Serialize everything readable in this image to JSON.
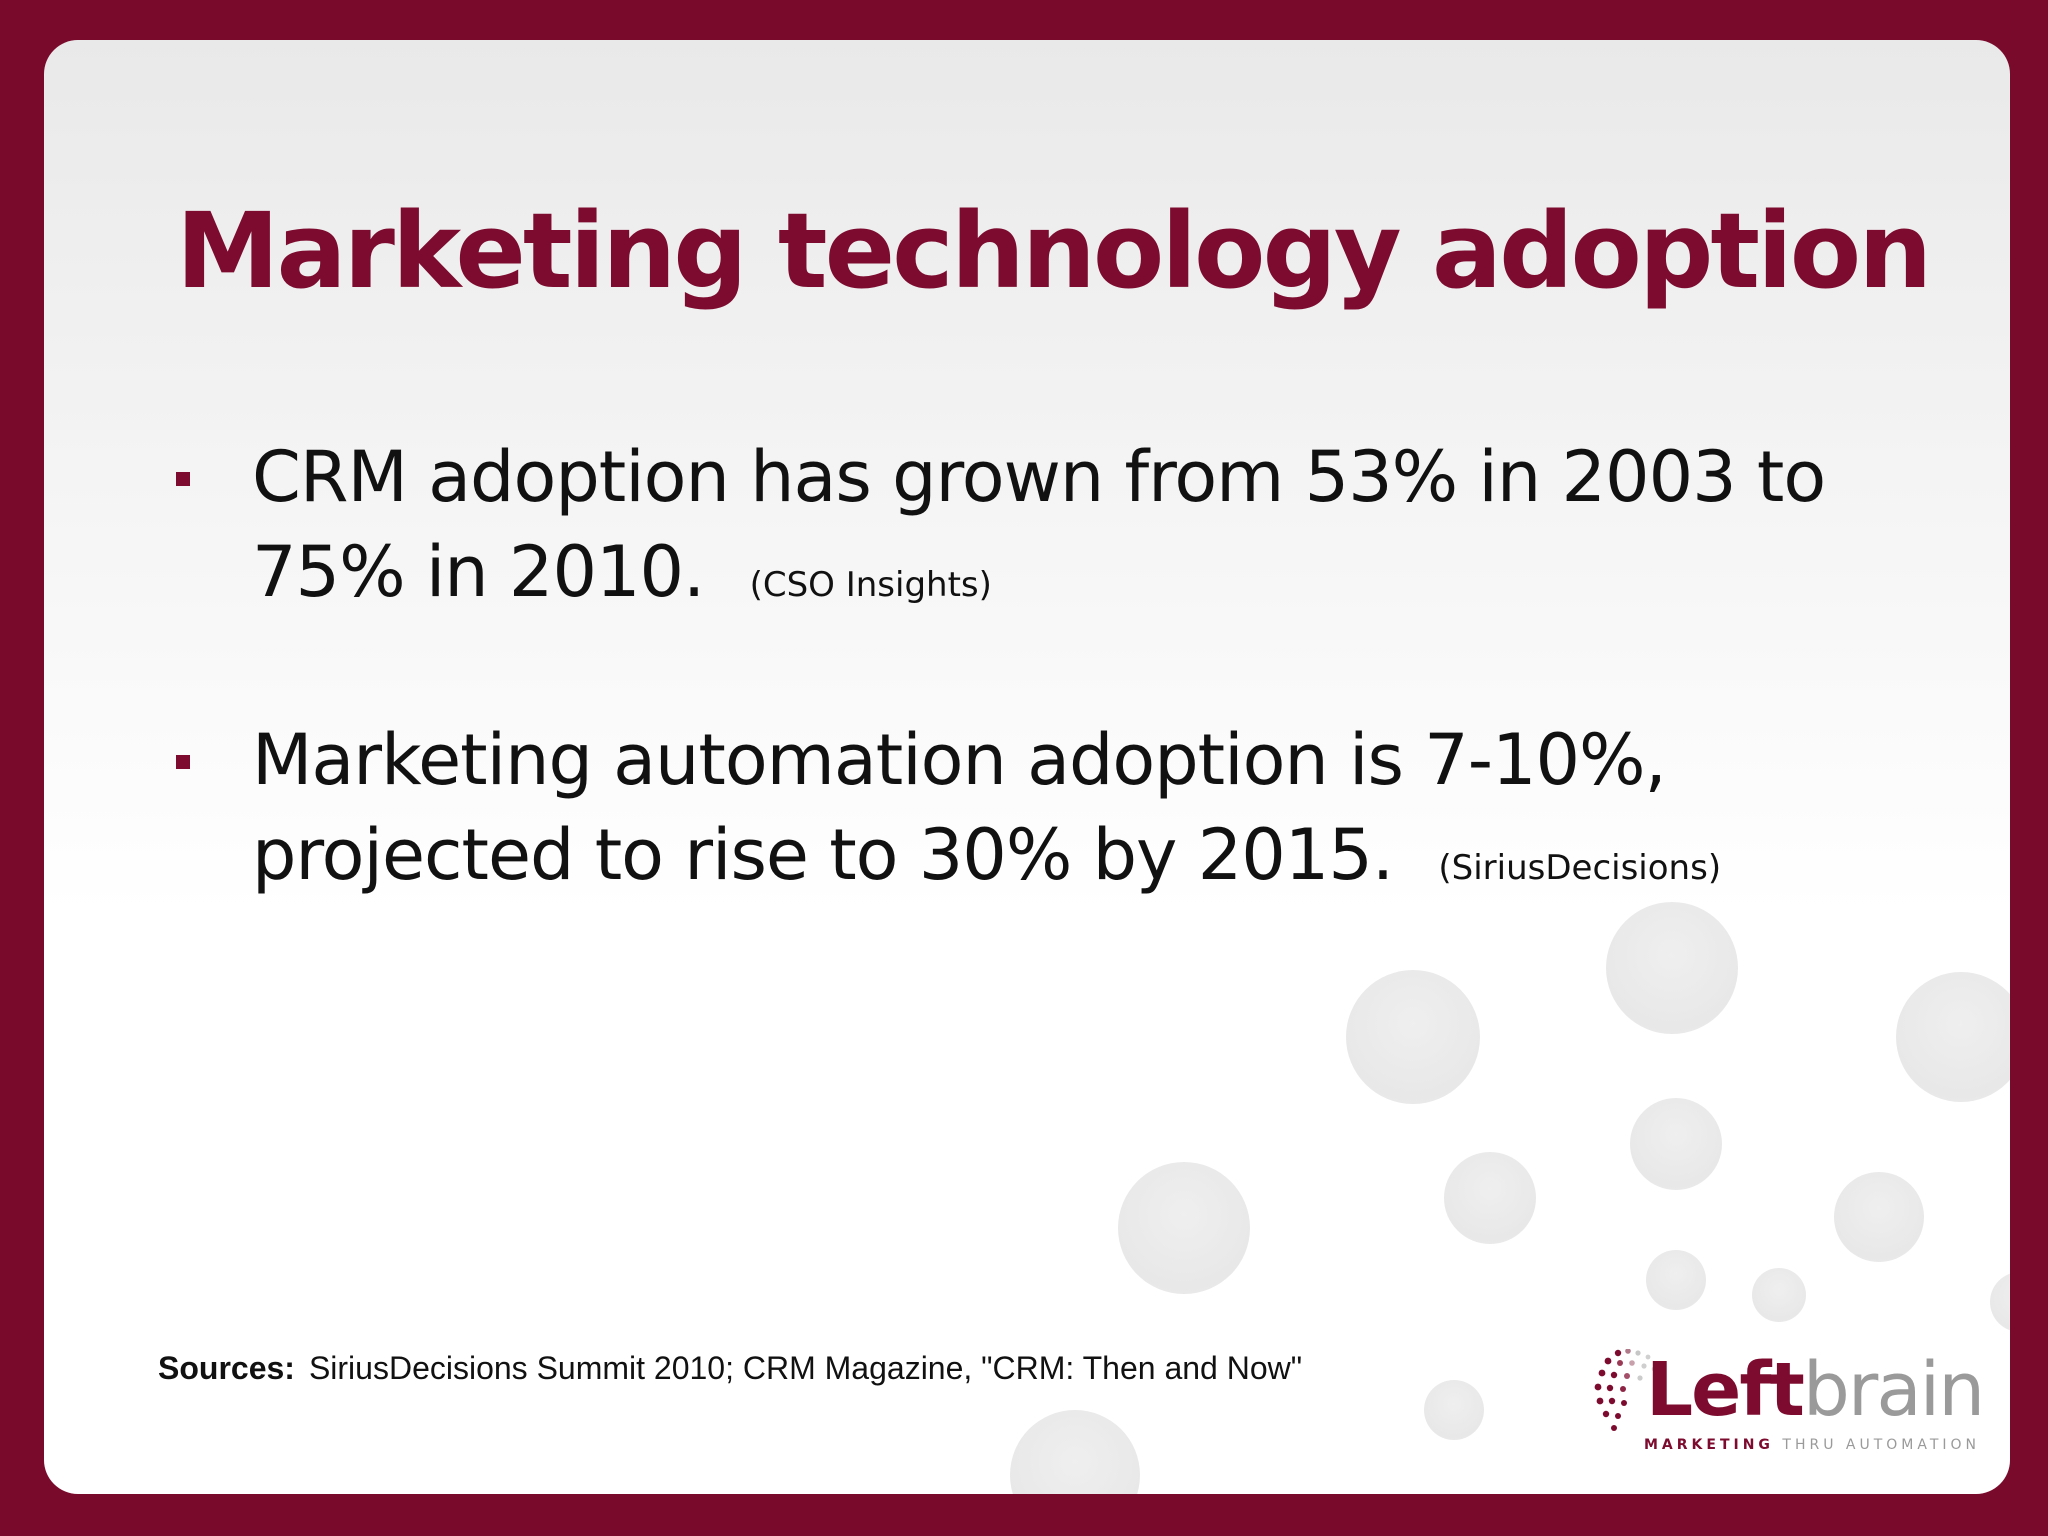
{
  "slide": {
    "title": "Marketing technology adoption",
    "bullets": [
      {
        "text": "CRM adoption has grown from 53% in 2003 to 75% in 2010.",
        "source": "(CSO Insights)"
      },
      {
        "text": "Marketing automation adoption is 7-10%, projected to rise to 30% by 2015.",
        "source": "(SiriusDecisions)"
      }
    ],
    "sources_label": "Sources:",
    "sources_text": "SiriusDecisions Summit 2010; CRM Magazine, \"CRM: Then and Now\""
  },
  "logo": {
    "word_1": "Left",
    "word_2": "brain",
    "tagline_1": "MARKETING",
    "tagline_2": "THRU AUTOMATION"
  },
  "colors": {
    "frame": "#7a0a2c",
    "accent": "#7c0b2f",
    "text": "#111111",
    "logo_grey": "#9a9a9a"
  }
}
